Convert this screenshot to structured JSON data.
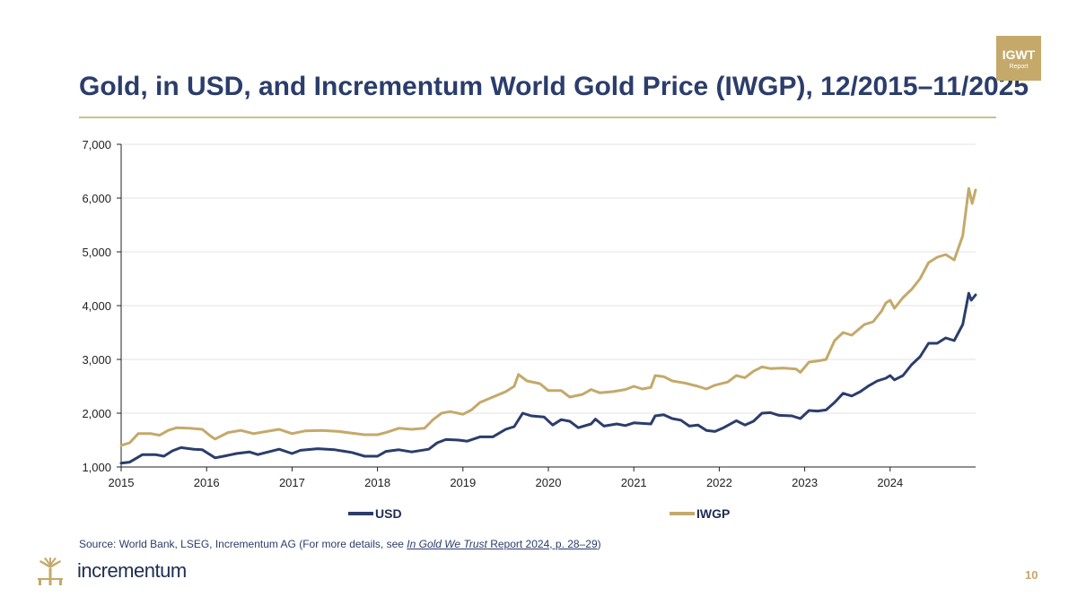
{
  "header": {
    "title": "Gold, in USD, and Incrementum World Gold Price (IWGP), 12/2015–11/2025",
    "badge_line1": "IGWT",
    "badge_line2": "Report"
  },
  "source": {
    "prefix": "Source: World Bank, LSEG, Incrementum AG (For more details, see ",
    "italic": "In Gold We Trust",
    "suffix_underlined": " Report 2024, p. 28–29",
    "close": ")"
  },
  "footer": {
    "brand": "incrementum",
    "page_number": "10"
  },
  "colors": {
    "usd": "#2b3d6b",
    "iwgp": "#c4a96a",
    "title": "#2b3d6b",
    "accent": "#c4a96a"
  },
  "chart_data": {
    "type": "line",
    "title": "Gold, in USD, and Incrementum World Gold Price (IWGP), 12/2015–11/2025",
    "xlabel": "",
    "ylabel": "",
    "xlim": [
      2015.0,
      2025.0
    ],
    "ylim": [
      1000,
      7000
    ],
    "y_ticks": [
      1000,
      2000,
      3000,
      4000,
      5000,
      6000,
      7000
    ],
    "y_tick_labels": [
      "1,000",
      "2,000",
      "3,000",
      "4,000",
      "5,000",
      "6,000",
      "7,000"
    ],
    "x_ticks": [
      2015,
      2016,
      2017,
      2018,
      2019,
      2020,
      2021,
      2022,
      2023,
      2024
    ],
    "x_tick_labels": [
      "2015",
      "2016",
      "2017",
      "2018",
      "2019",
      "2020",
      "2021",
      "2022",
      "2023",
      "2024"
    ],
    "grid": "horizontal",
    "legend": "bottom",
    "series": [
      {
        "name": "USD",
        "color": "#2b3d6b",
        "points": [
          [
            2015.0,
            1070
          ],
          [
            2015.1,
            1090
          ],
          [
            2015.25,
            1230
          ],
          [
            2015.4,
            1230
          ],
          [
            2015.5,
            1200
          ],
          [
            2015.6,
            1300
          ],
          [
            2015.7,
            1360
          ],
          [
            2015.85,
            1330
          ],
          [
            2015.95,
            1320
          ],
          [
            2016.1,
            1170
          ],
          [
            2016.2,
            1200
          ],
          [
            2016.35,
            1250
          ],
          [
            2016.5,
            1280
          ],
          [
            2016.6,
            1230
          ],
          [
            2016.75,
            1290
          ],
          [
            2016.85,
            1330
          ],
          [
            2017.0,
            1250
          ],
          [
            2017.1,
            1310
          ],
          [
            2017.3,
            1340
          ],
          [
            2017.5,
            1320
          ],
          [
            2017.7,
            1270
          ],
          [
            2017.85,
            1200
          ],
          [
            2018.0,
            1200
          ],
          [
            2018.1,
            1290
          ],
          [
            2018.25,
            1320
          ],
          [
            2018.4,
            1280
          ],
          [
            2018.6,
            1330
          ],
          [
            2018.7,
            1450
          ],
          [
            2018.8,
            1510
          ],
          [
            2018.95,
            1500
          ],
          [
            2019.05,
            1480
          ],
          [
            2019.2,
            1560
          ],
          [
            2019.35,
            1560
          ],
          [
            2019.5,
            1700
          ],
          [
            2019.6,
            1750
          ],
          [
            2019.7,
            2000
          ],
          [
            2019.8,
            1950
          ],
          [
            2019.95,
            1930
          ],
          [
            2020.05,
            1780
          ],
          [
            2020.15,
            1880
          ],
          [
            2020.25,
            1850
          ],
          [
            2020.35,
            1730
          ],
          [
            2020.5,
            1800
          ],
          [
            2020.55,
            1890
          ],
          [
            2020.65,
            1760
          ],
          [
            2020.8,
            1800
          ],
          [
            2020.9,
            1770
          ],
          [
            2021.0,
            1820
          ],
          [
            2021.2,
            1800
          ],
          [
            2021.25,
            1950
          ],
          [
            2021.35,
            1970
          ],
          [
            2021.45,
            1900
          ],
          [
            2021.55,
            1870
          ],
          [
            2021.65,
            1760
          ],
          [
            2021.75,
            1780
          ],
          [
            2021.85,
            1680
          ],
          [
            2021.95,
            1660
          ],
          [
            2022.05,
            1730
          ],
          [
            2022.2,
            1860
          ],
          [
            2022.3,
            1780
          ],
          [
            2022.4,
            1850
          ],
          [
            2022.5,
            2000
          ],
          [
            2022.6,
            2010
          ],
          [
            2022.7,
            1960
          ],
          [
            2022.85,
            1950
          ],
          [
            2022.95,
            1900
          ],
          [
            2023.05,
            2050
          ],
          [
            2023.15,
            2040
          ],
          [
            2023.25,
            2060
          ],
          [
            2023.35,
            2200
          ],
          [
            2023.45,
            2370
          ],
          [
            2023.55,
            2320
          ],
          [
            2023.65,
            2400
          ],
          [
            2023.75,
            2510
          ],
          [
            2023.85,
            2600
          ],
          [
            2023.95,
            2650
          ],
          [
            2024.0,
            2700
          ],
          [
            2024.05,
            2620
          ],
          [
            2024.15,
            2700
          ],
          [
            2024.25,
            2900
          ],
          [
            2024.35,
            3050
          ],
          [
            2024.45,
            3300
          ],
          [
            2024.55,
            3300
          ],
          [
            2024.65,
            3400
          ],
          [
            2024.75,
            3350
          ],
          [
            2024.85,
            3650
          ],
          [
            2024.92,
            4230
          ],
          [
            2024.95,
            4100
          ],
          [
            2025.0,
            4200
          ]
        ]
      },
      {
        "name": "IWGP",
        "color": "#c4a96a",
        "points": [
          [
            2015.0,
            1400
          ],
          [
            2015.1,
            1450
          ],
          [
            2015.2,
            1620
          ],
          [
            2015.35,
            1620
          ],
          [
            2015.45,
            1590
          ],
          [
            2015.55,
            1680
          ],
          [
            2015.65,
            1730
          ],
          [
            2015.8,
            1720
          ],
          [
            2015.95,
            1700
          ],
          [
            2016.05,
            1570
          ],
          [
            2016.1,
            1520
          ],
          [
            2016.25,
            1640
          ],
          [
            2016.4,
            1680
          ],
          [
            2016.55,
            1620
          ],
          [
            2016.7,
            1660
          ],
          [
            2016.85,
            1700
          ],
          [
            2017.0,
            1620
          ],
          [
            2017.15,
            1670
          ],
          [
            2017.35,
            1680
          ],
          [
            2017.55,
            1660
          ],
          [
            2017.7,
            1630
          ],
          [
            2017.85,
            1600
          ],
          [
            2018.0,
            1600
          ],
          [
            2018.1,
            1640
          ],
          [
            2018.25,
            1720
          ],
          [
            2018.4,
            1700
          ],
          [
            2018.55,
            1720
          ],
          [
            2018.65,
            1880
          ],
          [
            2018.75,
            2000
          ],
          [
            2018.85,
            2030
          ],
          [
            2019.0,
            1980
          ],
          [
            2019.1,
            2060
          ],
          [
            2019.2,
            2200
          ],
          [
            2019.35,
            2300
          ],
          [
            2019.5,
            2400
          ],
          [
            2019.6,
            2500
          ],
          [
            2019.65,
            2720
          ],
          [
            2019.75,
            2600
          ],
          [
            2019.9,
            2550
          ],
          [
            2020.0,
            2420
          ],
          [
            2020.15,
            2420
          ],
          [
            2020.25,
            2300
          ],
          [
            2020.4,
            2350
          ],
          [
            2020.5,
            2440
          ],
          [
            2020.6,
            2380
          ],
          [
            2020.75,
            2400
          ],
          [
            2020.9,
            2440
          ],
          [
            2021.0,
            2500
          ],
          [
            2021.1,
            2450
          ],
          [
            2021.2,
            2480
          ],
          [
            2021.25,
            2700
          ],
          [
            2021.35,
            2680
          ],
          [
            2021.45,
            2600
          ],
          [
            2021.6,
            2560
          ],
          [
            2021.75,
            2500
          ],
          [
            2021.85,
            2450
          ],
          [
            2021.95,
            2520
          ],
          [
            2022.1,
            2580
          ],
          [
            2022.2,
            2700
          ],
          [
            2022.3,
            2660
          ],
          [
            2022.4,
            2780
          ],
          [
            2022.5,
            2860
          ],
          [
            2022.6,
            2830
          ],
          [
            2022.75,
            2840
          ],
          [
            2022.9,
            2820
          ],
          [
            2022.95,
            2760
          ],
          [
            2023.05,
            2950
          ],
          [
            2023.15,
            2970
          ],
          [
            2023.25,
            3000
          ],
          [
            2023.35,
            3350
          ],
          [
            2023.45,
            3500
          ],
          [
            2023.55,
            3450
          ],
          [
            2023.7,
            3650
          ],
          [
            2023.8,
            3700
          ],
          [
            2023.9,
            3900
          ],
          [
            2023.95,
            4050
          ],
          [
            2024.0,
            4100
          ],
          [
            2024.05,
            3950
          ],
          [
            2024.15,
            4150
          ],
          [
            2024.25,
            4300
          ],
          [
            2024.35,
            4500
          ],
          [
            2024.45,
            4800
          ],
          [
            2024.55,
            4900
          ],
          [
            2024.65,
            4950
          ],
          [
            2024.75,
            4850
          ],
          [
            2024.85,
            5300
          ],
          [
            2024.92,
            6180
          ],
          [
            2024.96,
            5900
          ],
          [
            2025.0,
            6150
          ]
        ]
      }
    ]
  }
}
